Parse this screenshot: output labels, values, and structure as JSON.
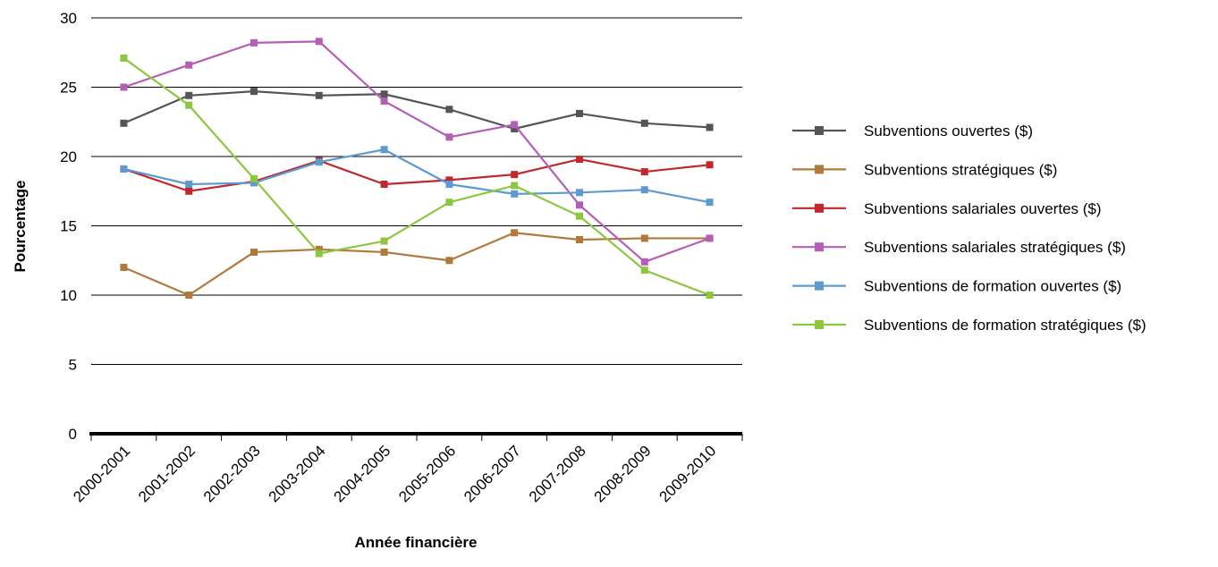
{
  "chart_data": {
    "type": "line",
    "title": "",
    "xlabel": "Année financière",
    "ylabel": "Pourcentage",
    "ylim": [
      0,
      30
    ],
    "yticks": [
      0,
      5,
      10,
      15,
      20,
      25,
      30
    ],
    "grid": "horizontal",
    "legend_position": "right",
    "categories": [
      "2000-2001",
      "2001-2002",
      "2002-2003",
      "2003-2004",
      "2004-2005",
      "2005-2006",
      "2006-2007",
      "2007-2008",
      "2008-2009",
      "2009-2010"
    ],
    "series": [
      {
        "name": "Subventions ouvertes ($)",
        "color": "#555555",
        "values": [
          22.4,
          24.4,
          24.7,
          24.4,
          24.5,
          23.4,
          22.0,
          23.1,
          22.4,
          22.1
        ]
      },
      {
        "name": "Subventions stratégiques ($)",
        "color": "#B07A3A",
        "values": [
          12.0,
          10.0,
          13.1,
          13.3,
          13.1,
          12.5,
          14.5,
          14.0,
          14.1,
          14.1
        ]
      },
      {
        "name": "Subventions salariales ouvertes ($)",
        "color": "#C0282D",
        "values": [
          19.1,
          17.5,
          18.2,
          19.7,
          18.0,
          18.3,
          18.7,
          19.8,
          18.9,
          19.4
        ]
      },
      {
        "name": "Subventions salariales stratégiques ($)",
        "color": "#B45EB6",
        "values": [
          25.0,
          26.6,
          28.2,
          28.3,
          24.0,
          21.4,
          22.3,
          16.5,
          12.4,
          14.1
        ]
      },
      {
        "name": "Subventions de formation ouvertes ($)",
        "color": "#5B9BD0",
        "values": [
          19.1,
          18.0,
          18.1,
          19.6,
          20.5,
          18.0,
          17.3,
          17.4,
          17.6,
          16.7
        ]
      },
      {
        "name": "Subventions de formation stratégiques ($)",
        "color": "#8DC63F",
        "values": [
          27.1,
          23.7,
          18.4,
          13.0,
          13.9,
          16.7,
          17.9,
          15.7,
          11.8,
          10.0
        ]
      }
    ]
  }
}
